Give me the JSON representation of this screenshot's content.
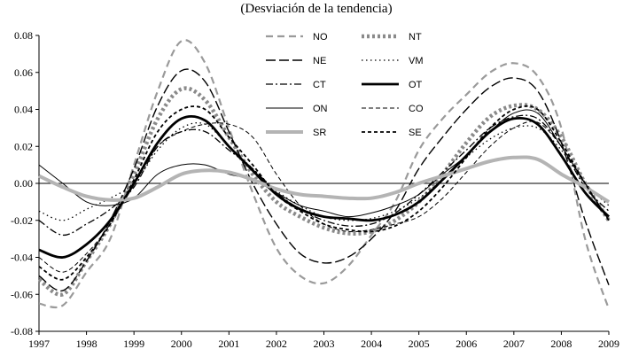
{
  "chart_data": {
    "type": "line",
    "title": "(Desviación de la tendencia)",
    "xlabel": "",
    "ylabel": "",
    "xlim": [
      1997,
      2009
    ],
    "ylim": [
      -0.08,
      0.08
    ],
    "x_ticks": [
      1997,
      1998,
      1999,
      2000,
      2001,
      2002,
      2003,
      2004,
      2005,
      2006,
      2007,
      2008,
      2009
    ],
    "y_ticks": [
      -0.08,
      -0.06,
      -0.04,
      -0.02,
      0.0,
      0.02,
      0.04,
      0.06,
      0.08
    ],
    "y_tick_labels": [
      "-0.08",
      "-0.06",
      "-0.04",
      "-0.02",
      "0.00",
      "0.02",
      "0.04",
      "0.06",
      "0.08"
    ],
    "grid": false,
    "zero_line": true,
    "legend_position": "top-right",
    "x": [
      1997.0,
      1997.5,
      1998.0,
      1998.5,
      1999.0,
      1999.5,
      2000.0,
      2000.5,
      2001.0,
      2001.5,
      2002.0,
      2002.5,
      2003.0,
      2003.5,
      2004.0,
      2004.5,
      2005.0,
      2005.5,
      2006.0,
      2006.5,
      2007.0,
      2007.5,
      2008.0,
      2008.5,
      2009.0
    ],
    "series": [
      {
        "name": "NO",
        "color": "#9a9a9a",
        "width": 2.2,
        "dash": "8,5",
        "values": [
          -0.065,
          -0.066,
          -0.048,
          -0.03,
          0.01,
          0.05,
          0.077,
          0.065,
          0.03,
          -0.005,
          -0.035,
          -0.05,
          -0.054,
          -0.045,
          -0.028,
          -0.01,
          0.018,
          0.035,
          0.048,
          0.06,
          0.065,
          0.058,
          0.03,
          -0.03,
          -0.068
        ]
      },
      {
        "name": "NT",
        "color": "#8a8a8a",
        "width": 4.5,
        "dash": "3,3",
        "values": [
          -0.052,
          -0.06,
          -0.042,
          -0.022,
          0.005,
          0.035,
          0.051,
          0.045,
          0.025,
          0.005,
          -0.01,
          -0.018,
          -0.024,
          -0.027,
          -0.026,
          -0.02,
          -0.01,
          0.005,
          0.022,
          0.036,
          0.042,
          0.04,
          0.025,
          0.0,
          -0.02
        ]
      },
      {
        "name": "NE",
        "color": "#000000",
        "width": 1.4,
        "dash": "11,4",
        "values": [
          -0.05,
          -0.058,
          -0.042,
          -0.02,
          0.008,
          0.042,
          0.061,
          0.055,
          0.028,
          0.0,
          -0.022,
          -0.038,
          -0.043,
          -0.04,
          -0.03,
          -0.015,
          0.008,
          0.025,
          0.04,
          0.052,
          0.057,
          0.05,
          0.022,
          -0.02,
          -0.055
        ]
      },
      {
        "name": "VM",
        "color": "#000000",
        "width": 1.3,
        "dash": "1.5,3.5",
        "values": [
          -0.015,
          -0.02,
          -0.014,
          -0.008,
          0.0,
          0.018,
          0.03,
          0.032,
          0.02,
          0.008,
          -0.004,
          -0.012,
          -0.018,
          -0.02,
          -0.019,
          -0.015,
          -0.008,
          0.002,
          0.014,
          0.024,
          0.03,
          0.03,
          0.018,
          0.0,
          -0.012
        ]
      },
      {
        "name": "CT",
        "color": "#000000",
        "width": 1.3,
        "dash": "8,3,2,3",
        "values": [
          -0.02,
          -0.028,
          -0.022,
          -0.014,
          -0.002,
          0.02,
          0.028,
          0.028,
          0.018,
          0.008,
          -0.005,
          -0.014,
          -0.02,
          -0.023,
          -0.022,
          -0.016,
          -0.006,
          0.006,
          0.018,
          0.03,
          0.036,
          0.035,
          0.02,
          -0.002,
          -0.015
        ]
      },
      {
        "name": "OT",
        "color": "#000000",
        "width": 2.8,
        "dash": "",
        "values": [
          -0.036,
          -0.04,
          -0.033,
          -0.02,
          0.0,
          0.022,
          0.035,
          0.034,
          0.02,
          0.007,
          -0.006,
          -0.014,
          -0.018,
          -0.019,
          -0.02,
          -0.017,
          -0.01,
          0.002,
          0.015,
          0.028,
          0.035,
          0.032,
          0.015,
          -0.005,
          -0.018
        ]
      },
      {
        "name": "ON",
        "color": "#000000",
        "width": 1.0,
        "dash": "",
        "values": [
          0.01,
          0.0,
          -0.01,
          -0.012,
          -0.008,
          0.005,
          0.01,
          0.01,
          0.005,
          0.002,
          -0.005,
          -0.012,
          -0.015,
          -0.018,
          -0.016,
          -0.012,
          -0.006,
          0.005,
          0.015,
          0.028,
          0.038,
          0.038,
          0.02,
          0.0,
          -0.02
        ]
      },
      {
        "name": "CO",
        "color": "#000000",
        "width": 1.0,
        "dash": "5,3",
        "values": [
          -0.04,
          -0.048,
          -0.038,
          -0.022,
          0.0,
          0.02,
          0.028,
          0.032,
          0.032,
          0.025,
          0.005,
          -0.012,
          -0.022,
          -0.026,
          -0.025,
          -0.022,
          -0.018,
          -0.008,
          0.006,
          0.02,
          0.03,
          0.033,
          0.02,
          0.0,
          -0.01
        ]
      },
      {
        "name": "SR",
        "color": "#b4b4b4",
        "width": 4.0,
        "dash": "",
        "values": [
          0.004,
          -0.002,
          -0.007,
          -0.009,
          -0.008,
          -0.002,
          0.005,
          0.007,
          0.006,
          0.002,
          -0.003,
          -0.006,
          -0.007,
          -0.008,
          -0.008,
          -0.005,
          0.0,
          0.004,
          0.008,
          0.012,
          0.014,
          0.013,
          0.005,
          -0.002,
          -0.01
        ]
      },
      {
        "name": "SE",
        "color": "#000000",
        "width": 1.8,
        "dash": "4,3",
        "values": [
          -0.045,
          -0.052,
          -0.04,
          -0.022,
          0.002,
          0.028,
          0.04,
          0.04,
          0.025,
          0.01,
          -0.006,
          -0.015,
          -0.022,
          -0.025,
          -0.026,
          -0.023,
          -0.015,
          -0.002,
          0.014,
          0.03,
          0.04,
          0.04,
          0.022,
          0.0,
          -0.02
        ]
      }
    ]
  }
}
